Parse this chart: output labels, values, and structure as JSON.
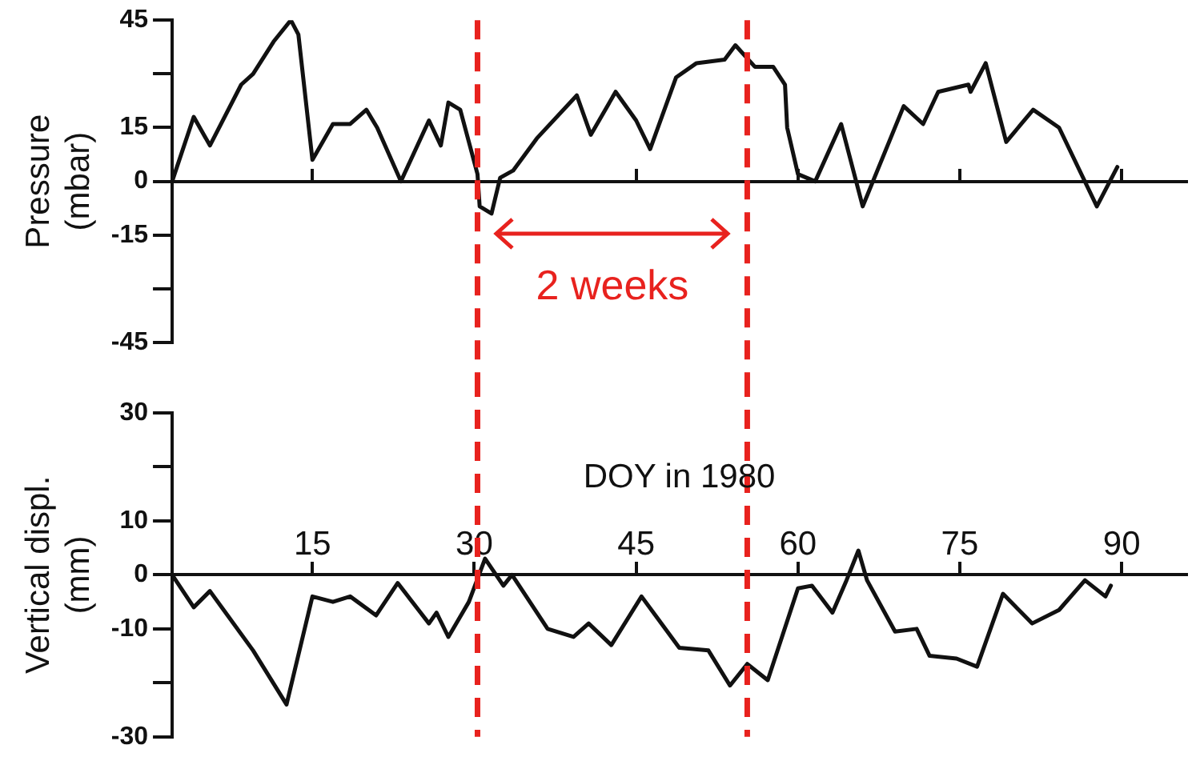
{
  "chart_data": [
    {
      "type": "line",
      "ylabel": "Pressure (mbar)",
      "xlim": [
        2,
        96
      ],
      "xticks": [
        15,
        45,
        60,
        75,
        90
      ],
      "ylim": [
        -45,
        45
      ],
      "yticks": [
        -45,
        {
          "value": -30,
          "label": null
        },
        -15,
        0,
        15,
        {
          "value": 30,
          "label": null
        },
        45
      ],
      "tick_labels": "y",
      "marker": "none",
      "series": [
        {
          "color": "#111111",
          "x": [
            2,
            4,
            5.5,
            8.4,
            9.5,
            11.4,
            13,
            13.7,
            15,
            16.9,
            18.5,
            20,
            21,
            23.2,
            25.8,
            26.9,
            27.6,
            28.7,
            30.3,
            30.5,
            31.6,
            32.4,
            33.6,
            35.8,
            39.5,
            40.8,
            43.1,
            45,
            46.3,
            48.7,
            50.6,
            53.2,
            54.2,
            56,
            57.7,
            58.8,
            59,
            60,
            61.6,
            64,
            66,
            69.8,
            71.6,
            73,
            75.8,
            76,
            77.4,
            79.3,
            81.8,
            84.2,
            87.7,
            89.6
          ],
          "values": [
            0,
            18,
            10,
            27,
            30,
            39,
            45,
            41,
            6,
            16,
            16,
            20,
            15,
            0,
            17,
            10,
            22,
            20,
            2,
            -7,
            -9,
            1,
            3,
            12,
            24,
            13,
            25,
            17,
            9,
            29,
            33,
            34,
            38,
            32,
            32,
            27,
            15,
            2,
            0,
            16,
            -7,
            21,
            16,
            25,
            27,
            25,
            33,
            11,
            20,
            15,
            -7,
            4
          ]
        }
      ],
      "ref_lines": [
        {
          "axis": "x",
          "value": 30.3,
          "color": "#e8221e",
          "line_style": "dashed"
        },
        {
          "axis": "x",
          "value": 55.3,
          "color": "#e8221e",
          "line_style": "dashed"
        }
      ],
      "annotations": [
        "2 weeks"
      ]
    },
    {
      "type": "line",
      "ylabel": "Vertical displ. (mm)",
      "xlabel": "DOY in 1980",
      "xlim": [
        2,
        96
      ],
      "xticks": [
        15,
        30,
        45,
        60,
        75,
        90
      ],
      "ylim": [
        -30,
        30
      ],
      "yticks": [
        -30,
        {
          "value": -20,
          "label": null
        },
        -10,
        0,
        10,
        {
          "value": 20,
          "label": null
        },
        30
      ],
      "marker": "none",
      "series": [
        {
          "color": "#111111",
          "x": [
            2,
            4,
            5.5,
            9.5,
            12.6,
            15,
            16.9,
            18.5,
            20.9,
            22.9,
            25.8,
            26.5,
            27.6,
            29.5,
            31,
            32.7,
            33.5,
            36.8,
            39.2,
            40.6,
            42.7,
            45.5,
            49,
            51.7,
            53.7,
            55.3,
            57.2,
            60,
            61.3,
            63.2,
            64.5,
            65.6,
            66.4,
            69,
            71,
            72.2,
            74.7,
            76.6,
            79,
            81.7,
            84.2,
            86.6,
            88.5,
            89
          ],
          "values": [
            0,
            -6,
            -3,
            -14,
            -24,
            -4,
            -5,
            -4,
            -7.5,
            -1.5,
            -9,
            -7,
            -11.5,
            -5,
            3,
            -2,
            0,
            -10,
            -11.5,
            -9,
            -13,
            -4,
            -13.5,
            -14,
            -20.5,
            -16.5,
            -19.5,
            -2.5,
            -2,
            -7,
            -1,
            4.5,
            -1,
            -10.5,
            -10,
            -15,
            -15.5,
            -17,
            -3.5,
            -9,
            -6.5,
            -1,
            -4,
            -2
          ]
        }
      ],
      "ref_lines": [
        {
          "axis": "x",
          "value": 30.3,
          "color": "#e8221e",
          "line_style": "dashed"
        },
        {
          "axis": "x",
          "value": 55.3,
          "color": "#e8221e",
          "line_style": "dashed"
        }
      ]
    }
  ]
}
